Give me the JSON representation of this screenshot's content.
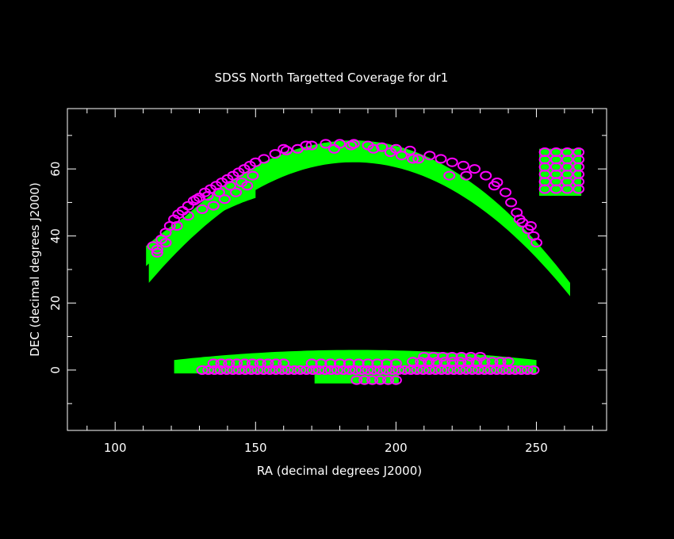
{
  "chart_data": {
    "type": "scatter",
    "title": "SDSS North Targetted Coverage for dr1",
    "xlabel": "RA (decimal degrees J2000)",
    "ylabel": "DEC (decimal degrees J2000)",
    "xlim": [
      83,
      275
    ],
    "ylim": [
      -18,
      78
    ],
    "x_ticks": [
      100,
      150,
      200,
      250
    ],
    "y_ticks": [
      0,
      20,
      40,
      60
    ],
    "x_minor_step": 10,
    "y_minor_step": 10,
    "grid": false,
    "colors": {
      "background": "#000000",
      "axes": "#ffffff",
      "coverage": "#00ff00",
      "plates": "#ff00ff"
    },
    "series": [
      {
        "kind": "coverage",
        "stripes": [
          {
            "ra": [
              112,
              262
            ],
            "inner_dec": [
              26,
              62,
              22
            ],
            "outer_dec": [
              35,
              68.5,
              26
            ],
            "peak_ra": 185
          },
          {
            "ra": [
              111,
              150
            ],
            "inner_dec": [
              31,
              54,
              31
            ],
            "outer_dec": [
              37,
              58,
              37
            ],
            "peak_ra": 170
          },
          {
            "ra": [
              251,
              266
            ],
            "inner_dec": [
              52,
              52,
              52
            ],
            "outer_dec": [
              66,
              66,
              66
            ],
            "peak_ra": 258
          },
          {
            "ra": [
              121,
              250
            ],
            "inner_dec": [
              -1,
              -1,
              -1
            ],
            "outer_dec": [
              3,
              6,
              3
            ],
            "peak_ra": 186
          },
          {
            "ra": [
              171,
              201
            ],
            "inner_dec": [
              -4,
              -4,
              -4
            ],
            "outer_dec": [
              -1,
              -1,
              -1
            ],
            "peak_ra": 186
          }
        ]
      },
      {
        "kind": "plates",
        "arc_plates": [
          [
            113.5,
            37
          ],
          [
            115,
            35
          ],
          [
            116.5,
            39
          ],
          [
            118,
            41
          ],
          [
            119.5,
            43
          ],
          [
            121,
            45
          ],
          [
            122.5,
            46.5
          ],
          [
            124,
            47.5
          ],
          [
            126,
            49
          ],
          [
            128,
            50.5
          ],
          [
            130,
            51.5
          ],
          [
            132,
            53
          ],
          [
            134,
            54
          ],
          [
            136,
            55
          ],
          [
            138,
            56
          ],
          [
            140,
            57
          ],
          [
            142,
            58
          ],
          [
            144,
            59
          ],
          [
            146,
            60
          ],
          [
            148,
            61
          ],
          [
            150,
            62
          ],
          [
            153,
            63
          ],
          [
            157,
            64.5
          ],
          [
            161,
            65.5
          ],
          [
            165,
            66
          ],
          [
            170,
            67
          ],
          [
            175,
            67.5
          ],
          [
            180,
            67.5
          ],
          [
            185,
            67.5
          ],
          [
            190,
            67
          ],
          [
            195,
            66.5
          ],
          [
            200,
            66
          ],
          [
            205,
            65.5
          ],
          [
            208,
            63
          ],
          [
            212,
            64
          ],
          [
            216,
            63
          ],
          [
            220,
            62
          ],
          [
            224,
            61
          ],
          [
            228,
            60
          ],
          [
            232,
            58
          ],
          [
            236,
            56
          ],
          [
            239,
            53
          ],
          [
            241,
            50
          ],
          [
            243,
            47
          ],
          [
            245,
            44
          ],
          [
            247,
            42
          ],
          [
            249,
            40
          ],
          [
            250,
            38
          ],
          [
            202,
            64
          ],
          [
            206,
            63
          ],
          [
            219,
            58
          ],
          [
            225,
            58
          ],
          [
            235,
            55
          ],
          [
            244,
            45
          ],
          [
            248,
            43
          ],
          [
            160,
            66
          ],
          [
            168,
            67
          ],
          [
            178,
            66
          ],
          [
            184,
            67
          ],
          [
            192,
            66
          ],
          [
            198,
            65
          ],
          [
            131,
            48
          ],
          [
            135,
            49
          ],
          [
            139,
            51
          ],
          [
            143,
            53
          ],
          [
            147,
            55
          ],
          [
            126,
            46
          ],
          [
            122,
            43
          ],
          [
            118,
            38
          ],
          [
            115,
            36
          ],
          [
            129,
            51
          ],
          [
            133,
            52
          ],
          [
            137,
            53
          ],
          [
            141,
            55
          ],
          [
            145,
            56
          ],
          [
            149,
            58
          ]
        ],
        "block_plates": [
          {
            "ra": [
              253,
              265
            ],
            "dec": [
              54,
              65
            ],
            "cols": 4,
            "rows": 6
          },
          {
            "ra": [
              131,
              249
            ],
            "dec": [
              0,
              0
            ],
            "cols": 55,
            "rows": 1
          },
          {
            "ra": [
              135,
              160
            ],
            "dec": [
              2,
              2
            ],
            "cols": 10,
            "rows": 1
          },
          {
            "ra": [
              170,
              200
            ],
            "dec": [
              2,
              2
            ],
            "cols": 10,
            "rows": 1
          },
          {
            "ra": [
              206,
              240
            ],
            "dec": [
              2.5,
              2.5
            ],
            "cols": 13,
            "rows": 1
          },
          {
            "ra": [
              210,
              230
            ],
            "dec": [
              4,
              4
            ],
            "cols": 7,
            "rows": 1
          },
          {
            "ra": [
              186,
              200
            ],
            "dec": [
              -3,
              -3
            ],
            "cols": 6,
            "rows": 1
          }
        ]
      }
    ]
  }
}
